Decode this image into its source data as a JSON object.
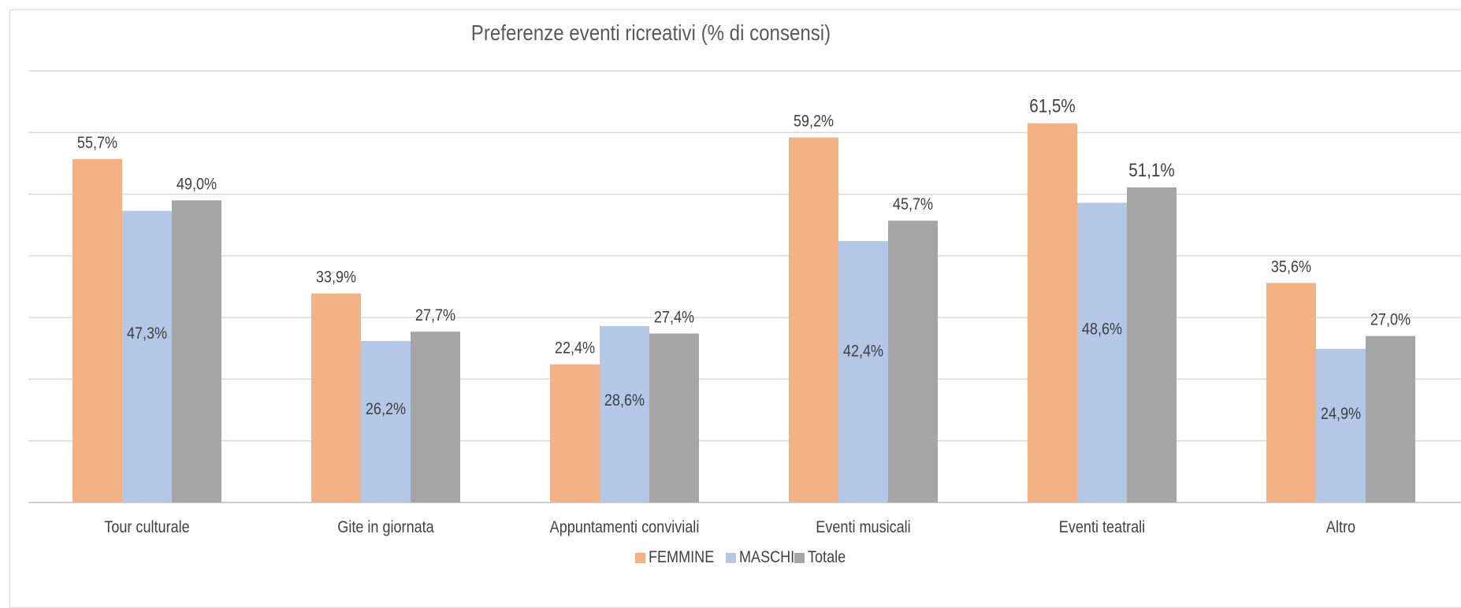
{
  "chart_data": {
    "type": "bar",
    "title": "Preferenze eventi ricreativi (% di consensi)",
    "xlabel": "",
    "ylabel": "",
    "ylim": [
      0,
      70
    ],
    "grid": true,
    "legend_position": "bottom",
    "categories": [
      "Tour culturale",
      "Gite in giornata",
      "Appuntamenti conviviali",
      "Eventi musicali",
      "Eventi teatrali",
      "Altro"
    ],
    "series": [
      {
        "name": "FEMMINE",
        "color": "#f4b183",
        "values": [
          55.7,
          33.9,
          22.4,
          59.2,
          61.5,
          35.6
        ],
        "labels": [
          "55,7%",
          "33,9%",
          "22,4%",
          "59,2%",
          "61,5%",
          "35,6%"
        ]
      },
      {
        "name": "MASCHI",
        "color": "#b4c7e7",
        "values": [
          47.3,
          26.2,
          28.6,
          42.4,
          48.6,
          24.9
        ],
        "labels": [
          "47,3%",
          "26,2%",
          "28,6%",
          "42,4%",
          "48,6%",
          "24,9%"
        ]
      },
      {
        "name": "Totale",
        "color": "#a5a5a5",
        "values": [
          49.0,
          27.7,
          27.4,
          45.7,
          51.1,
          27.0
        ],
        "labels": [
          "49,0%",
          "27,7%",
          "27,4%",
          "45,7%",
          "51,1%",
          "27,0%"
        ]
      }
    ]
  }
}
